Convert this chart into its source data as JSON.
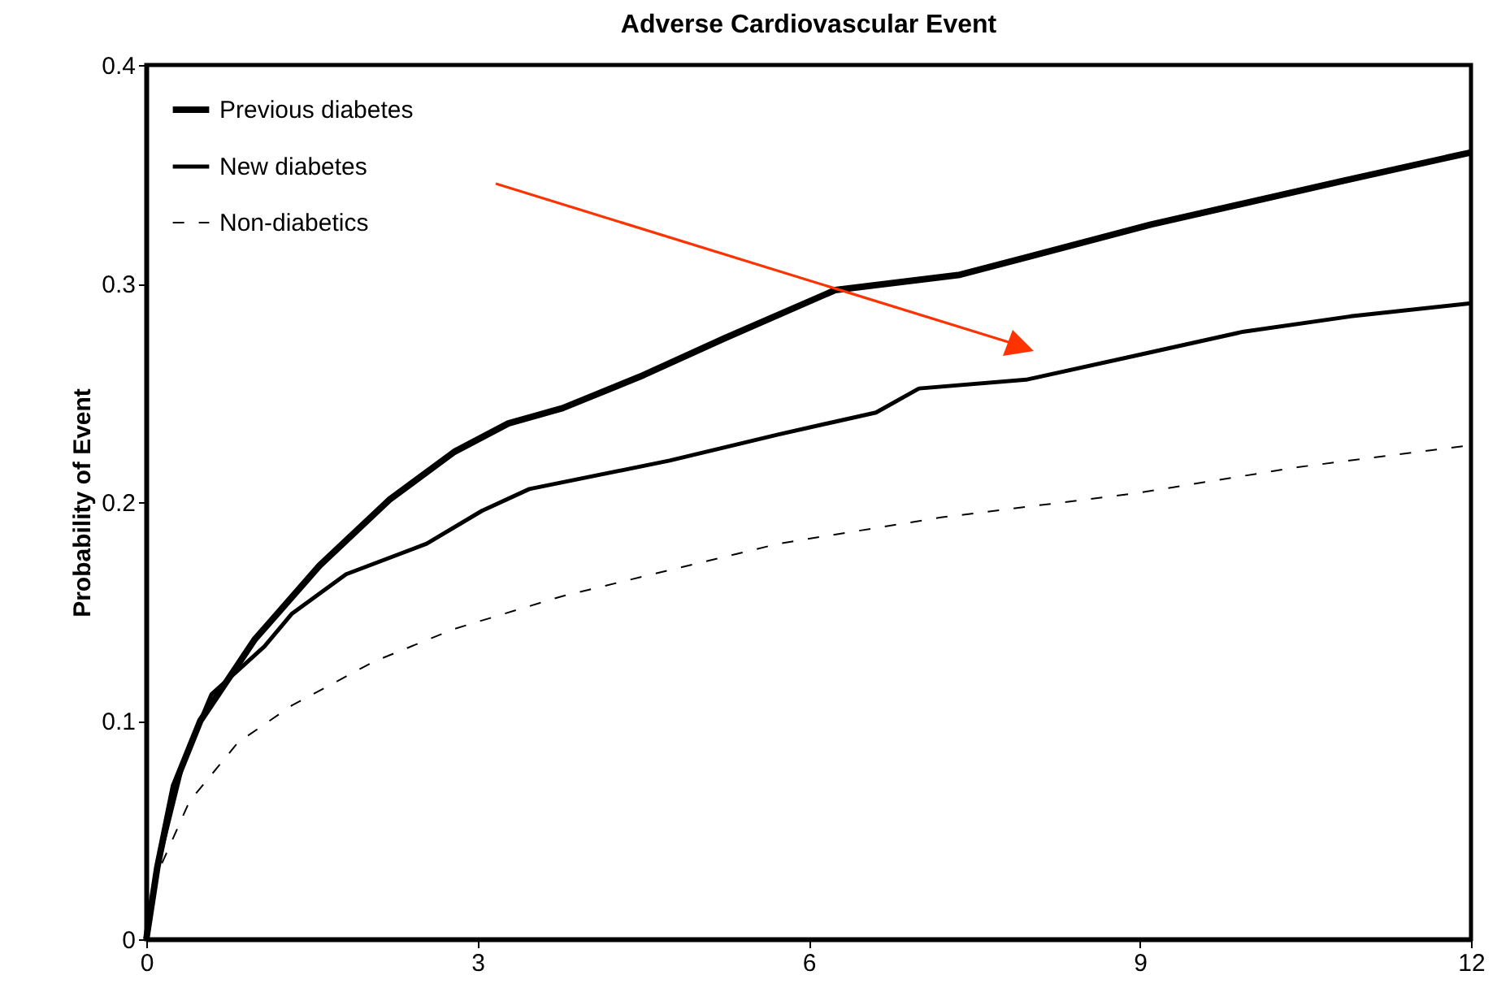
{
  "chart_data": {
    "type": "line",
    "title": "Adverse Cardiovascular Event",
    "ylabel": "Probability of Event",
    "xlim": [
      0,
      12
    ],
    "xticks": [
      0,
      3,
      6,
      9,
      12
    ],
    "ylim": [
      0,
      0.4
    ],
    "yticks": [
      0,
      0.1,
      0.2,
      0.3,
      0.4
    ],
    "grid": false,
    "legend": "top left",
    "series": [
      {
        "name": "Previous diabetes",
        "color": "#000000",
        "line_style": "solid",
        "x": [
          0,
          0.1,
          0.25,
          0.49,
          0.98,
          1.57,
          2.2,
          2.79,
          3.28,
          3.77,
          4.5,
          5.24,
          6.24,
          7.37,
          9.1,
          10.84,
          12
        ],
        "values": [
          0,
          0.033,
          0.07,
          0.1,
          0.137,
          0.171,
          0.201,
          0.223,
          0.236,
          0.243,
          0.258,
          0.275,
          0.297,
          0.304,
          0.327,
          0.347,
          0.36
        ]
      },
      {
        "name": "New diabetes",
        "color": "#000000",
        "line_style": "solid",
        "x": [
          0,
          0.1,
          0.34,
          0.59,
          1.07,
          1.32,
          1.81,
          2.54,
          3.04,
          3.47,
          4.74,
          5.73,
          6.61,
          7.0,
          7.97,
          8.96,
          9.94,
          10.91,
          12
        ],
        "values": [
          0,
          0.033,
          0.082,
          0.112,
          0.134,
          0.149,
          0.167,
          0.181,
          0.196,
          0.206,
          0.219,
          0.231,
          0.241,
          0.252,
          0.256,
          0.267,
          0.278,
          0.285,
          0.291
        ]
      },
      {
        "name": "Non-diabetics",
        "color": "#000000",
        "line_style": "dashed",
        "x": [
          0,
          0.1,
          0.39,
          0.83,
          1.32,
          2.06,
          2.79,
          3.77,
          4.75,
          5.73,
          7.2,
          8.96,
          10.43,
          12
        ],
        "values": [
          0,
          0.03,
          0.063,
          0.09,
          0.107,
          0.127,
          0.142,
          0.157,
          0.169,
          0.181,
          0.193,
          0.204,
          0.216,
          0.226
        ]
      }
    ]
  }
}
